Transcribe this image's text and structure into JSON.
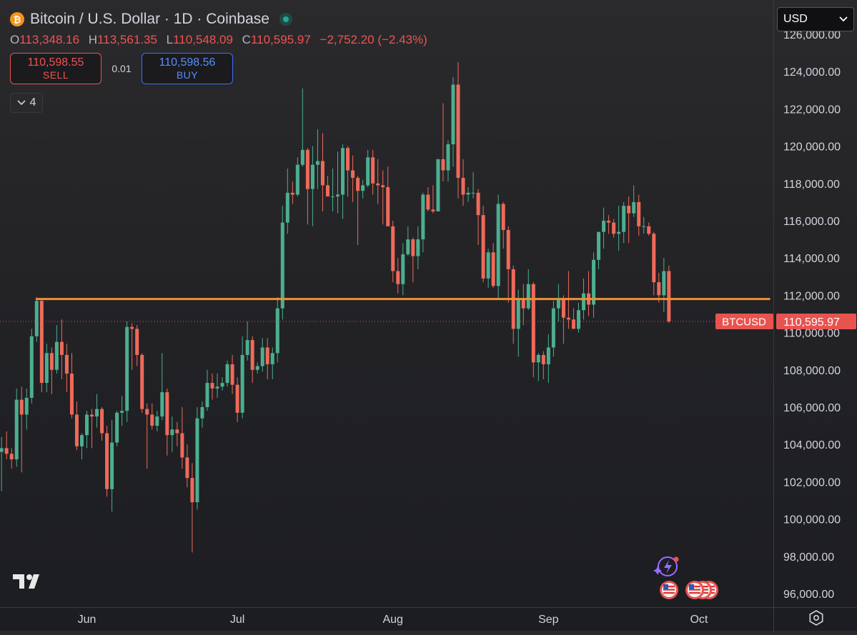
{
  "header": {
    "symbol_icon": "bitcoin-icon",
    "title": "Bitcoin / U.S. Dollar · 1D · Coinbase",
    "market_status_icon": "live-market-dot-icon",
    "ohlc": {
      "o_label": "O",
      "o": "113,348.16",
      "h_label": "H",
      "h": "113,561.35",
      "l_label": "L",
      "l": "110,548.09",
      "c_label": "C",
      "c": "110,595.97",
      "change": "−2,752.20 (−2.43%)"
    }
  },
  "trade": {
    "sell_price": "110,598.55",
    "sell_label": "SELL",
    "spread": "0.01",
    "buy_price": "110,598.56",
    "buy_label": "BUY"
  },
  "indicators": {
    "count": "4",
    "icon": "chevron-down-icon"
  },
  "currency": {
    "selected": "USD"
  },
  "price_tag": {
    "symbol": "BTCUSD",
    "price": "110,595.97"
  },
  "colors": {
    "up": "#4caf8f",
    "down": "#ef6a5a",
    "level_line": "#f0902f",
    "price_tag": "#e8534f",
    "sell": "#ef5350",
    "buy": "#3d6ef5"
  },
  "chart_data": {
    "type": "candlestick",
    "y_axis": {
      "range": [
        95700,
        126000
      ],
      "ticks": [
        96000,
        98000,
        100000,
        102000,
        104000,
        106000,
        108000,
        110000,
        112000,
        114000,
        116000,
        118000,
        120000,
        122000,
        124000,
        126000
      ],
      "tick_labels": [
        "96,000.00",
        "98,000.00",
        "100,000.00",
        "102,000.00",
        "104,000.00",
        "106,000.00",
        "108,000.00",
        "110,000.00",
        "112,000.00",
        "114,000.00",
        "116,000.00",
        "118,000.00",
        "120,000.00",
        "122,000.00",
        "124,000.00",
        "126,000.00"
      ]
    },
    "x_axis": {
      "tick_labels": [
        "Jun",
        "Jul",
        "Aug",
        "Sep",
        "Oct"
      ],
      "tick_dates": [
        "2025-06-01",
        "2025-07-01",
        "2025-08-01",
        "2025-09-01",
        "2025-10-01"
      ]
    },
    "level_line": {
      "price": 111800,
      "from": "2025-05-22",
      "to": "2025-10-15"
    },
    "last_price": 110595.97,
    "candles": [
      {
        "d": "2025-05-15",
        "o": 103600,
        "h": 104400,
        "l": 101500,
        "c": 103800
      },
      {
        "d": "2025-05-16",
        "o": 103800,
        "h": 104700,
        "l": 103200,
        "c": 103500
      },
      {
        "d": "2025-05-17",
        "o": 103500,
        "h": 103800,
        "l": 102700,
        "c": 103200
      },
      {
        "d": "2025-05-18",
        "o": 103200,
        "h": 107000,
        "l": 102800,
        "c": 106400
      },
      {
        "d": "2025-05-19",
        "o": 106400,
        "h": 107100,
        "l": 102500,
        "c": 105600
      },
      {
        "d": "2025-05-20",
        "o": 105600,
        "h": 107000,
        "l": 104800,
        "c": 106500
      },
      {
        "d": "2025-05-21",
        "o": 106500,
        "h": 110200,
        "l": 106200,
        "c": 109800
      },
      {
        "d": "2025-05-22",
        "o": 109800,
        "h": 111900,
        "l": 109500,
        "c": 111700
      },
      {
        "d": "2025-05-23",
        "o": 111700,
        "h": 111800,
        "l": 106800,
        "c": 107300
      },
      {
        "d": "2025-05-24",
        "o": 107300,
        "h": 109400,
        "l": 106800,
        "c": 108900
      },
      {
        "d": "2025-05-25",
        "o": 108900,
        "h": 109200,
        "l": 106700,
        "c": 108000
      },
      {
        "d": "2025-05-26",
        "o": 108000,
        "h": 110400,
        "l": 107800,
        "c": 109500
      },
      {
        "d": "2025-05-27",
        "o": 109500,
        "h": 110700,
        "l": 107500,
        "c": 108800
      },
      {
        "d": "2025-05-28",
        "o": 108800,
        "h": 109400,
        "l": 106800,
        "c": 107800
      },
      {
        "d": "2025-05-29",
        "o": 107800,
        "h": 108900,
        "l": 105400,
        "c": 105600
      },
      {
        "d": "2025-05-30",
        "o": 105600,
        "h": 106300,
        "l": 103700,
        "c": 103900
      },
      {
        "d": "2025-05-31",
        "o": 103900,
        "h": 104600,
        "l": 103200,
        "c": 104500
      },
      {
        "d": "2025-06-01",
        "o": 104500,
        "h": 105800,
        "l": 103800,
        "c": 105600
      },
      {
        "d": "2025-06-02",
        "o": 105600,
        "h": 105900,
        "l": 103800,
        "c": 105500
      },
      {
        "d": "2025-06-03",
        "o": 105500,
        "h": 106700,
        "l": 104900,
        "c": 105900
      },
      {
        "d": "2025-06-04",
        "o": 105900,
        "h": 106000,
        "l": 104200,
        "c": 104600
      },
      {
        "d": "2025-06-05",
        "o": 104600,
        "h": 105000,
        "l": 101200,
        "c": 101600
      },
      {
        "d": "2025-06-06",
        "o": 101600,
        "h": 105300,
        "l": 100400,
        "c": 104100
      },
      {
        "d": "2025-06-07",
        "o": 104100,
        "h": 105800,
        "l": 103900,
        "c": 105700
      },
      {
        "d": "2025-06-08",
        "o": 105700,
        "h": 106600,
        "l": 105000,
        "c": 105800
      },
      {
        "d": "2025-06-09",
        "o": 105800,
        "h": 110600,
        "l": 105200,
        "c": 110300
      },
      {
        "d": "2025-06-10",
        "o": 110300,
        "h": 110500,
        "l": 108000,
        "c": 110200
      },
      {
        "d": "2025-06-11",
        "o": 110200,
        "h": 110400,
        "l": 108200,
        "c": 108800
      },
      {
        "d": "2025-06-12",
        "o": 108800,
        "h": 108900,
        "l": 105700,
        "c": 105900
      },
      {
        "d": "2025-06-13",
        "o": 105900,
        "h": 106200,
        "l": 102700,
        "c": 105600
      },
      {
        "d": "2025-06-14",
        "o": 105600,
        "h": 106200,
        "l": 104800,
        "c": 105000
      },
      {
        "d": "2025-06-15",
        "o": 105000,
        "h": 105800,
        "l": 104700,
        "c": 105500
      },
      {
        "d": "2025-06-16",
        "o": 105500,
        "h": 108900,
        "l": 105300,
        "c": 106800
      },
      {
        "d": "2025-06-17",
        "o": 106800,
        "h": 107000,
        "l": 103400,
        "c": 104500
      },
      {
        "d": "2025-06-18",
        "o": 104500,
        "h": 105500,
        "l": 103600,
        "c": 104800
      },
      {
        "d": "2025-06-19",
        "o": 104800,
        "h": 105200,
        "l": 103900,
        "c": 104600
      },
      {
        "d": "2025-06-20",
        "o": 104600,
        "h": 106000,
        "l": 102700,
        "c": 103300
      },
      {
        "d": "2025-06-21",
        "o": 103300,
        "h": 104000,
        "l": 101700,
        "c": 102200
      },
      {
        "d": "2025-06-22",
        "o": 102200,
        "h": 103000,
        "l": 98200,
        "c": 100900
      },
      {
        "d": "2025-06-23",
        "o": 100900,
        "h": 106000,
        "l": 100500,
        "c": 105400
      },
      {
        "d": "2025-06-24",
        "o": 105400,
        "h": 106300,
        "l": 104900,
        "c": 106000
      },
      {
        "d": "2025-06-25",
        "o": 106000,
        "h": 108000,
        "l": 105800,
        "c": 107300
      },
      {
        "d": "2025-06-26",
        "o": 107300,
        "h": 107800,
        "l": 106400,
        "c": 107000
      },
      {
        "d": "2025-06-27",
        "o": 107000,
        "h": 107800,
        "l": 106500,
        "c": 107100
      },
      {
        "d": "2025-06-28",
        "o": 107100,
        "h": 107600,
        "l": 106900,
        "c": 107300
      },
      {
        "d": "2025-06-29",
        "o": 107300,
        "h": 108500,
        "l": 107100,
        "c": 108300
      },
      {
        "d": "2025-06-30",
        "o": 108300,
        "h": 108800,
        "l": 106700,
        "c": 107200
      },
      {
        "d": "2025-07-01",
        "o": 107200,
        "h": 107600,
        "l": 105200,
        "c": 105700
      },
      {
        "d": "2025-07-02",
        "o": 105700,
        "h": 109800,
        "l": 105400,
        "c": 108800
      },
      {
        "d": "2025-07-03",
        "o": 108800,
        "h": 110600,
        "l": 108500,
        "c": 109600
      },
      {
        "d": "2025-07-04",
        "o": 109600,
        "h": 109800,
        "l": 107300,
        "c": 108000
      },
      {
        "d": "2025-07-05",
        "o": 108000,
        "h": 108400,
        "l": 107800,
        "c": 108200
      },
      {
        "d": "2025-07-06",
        "o": 108200,
        "h": 109700,
        "l": 107900,
        "c": 109200
      },
      {
        "d": "2025-07-07",
        "o": 109200,
        "h": 109700,
        "l": 107500,
        "c": 108300
      },
      {
        "d": "2025-07-08",
        "o": 108300,
        "h": 109200,
        "l": 107500,
        "c": 108900
      },
      {
        "d": "2025-07-09",
        "o": 108900,
        "h": 111900,
        "l": 108400,
        "c": 111300
      },
      {
        "d": "2025-07-10",
        "o": 111300,
        "h": 116800,
        "l": 110700,
        "c": 115900
      },
      {
        "d": "2025-07-11",
        "o": 115900,
        "h": 118800,
        "l": 115300,
        "c": 117500
      },
      {
        "d": "2025-07-12",
        "o": 117500,
        "h": 118100,
        "l": 116900,
        "c": 117400
      },
      {
        "d": "2025-07-13",
        "o": 117400,
        "h": 119400,
        "l": 117300,
        "c": 119000
      },
      {
        "d": "2025-07-14",
        "o": 119000,
        "h": 123100,
        "l": 118900,
        "c": 119800
      },
      {
        "d": "2025-07-15",
        "o": 119800,
        "h": 119900,
        "l": 115800,
        "c": 117700
      },
      {
        "d": "2025-07-16",
        "o": 117700,
        "h": 120000,
        "l": 115700,
        "c": 119000
      },
      {
        "d": "2025-07-17",
        "o": 119000,
        "h": 120900,
        "l": 117700,
        "c": 119200
      },
      {
        "d": "2025-07-18",
        "o": 119200,
        "h": 120700,
        "l": 116500,
        "c": 117900
      },
      {
        "d": "2025-07-19",
        "o": 117900,
        "h": 118400,
        "l": 117400,
        "c": 117300
      },
      {
        "d": "2025-07-20",
        "o": 117300,
        "h": 118800,
        "l": 116500,
        "c": 117300
      },
      {
        "d": "2025-07-21",
        "o": 117300,
        "h": 119700,
        "l": 116400,
        "c": 117400
      },
      {
        "d": "2025-07-22",
        "o": 117400,
        "h": 120100,
        "l": 116100,
        "c": 119900
      },
      {
        "d": "2025-07-23",
        "o": 119900,
        "h": 120000,
        "l": 117300,
        "c": 118700
      },
      {
        "d": "2025-07-24",
        "o": 118700,
        "h": 119500,
        "l": 117000,
        "c": 118300
      },
      {
        "d": "2025-07-25",
        "o": 118300,
        "h": 118400,
        "l": 114700,
        "c": 117600
      },
      {
        "d": "2025-07-26",
        "o": 117600,
        "h": 118200,
        "l": 117200,
        "c": 117900
      },
      {
        "d": "2025-07-27",
        "o": 117900,
        "h": 119800,
        "l": 117800,
        "c": 119400
      },
      {
        "d": "2025-07-28",
        "o": 119400,
        "h": 119800,
        "l": 117400,
        "c": 118000
      },
      {
        "d": "2025-07-29",
        "o": 118000,
        "h": 119300,
        "l": 116900,
        "c": 117900
      },
      {
        "d": "2025-07-30",
        "o": 117900,
        "h": 118700,
        "l": 115800,
        "c": 117800
      },
      {
        "d": "2025-07-31",
        "o": 117800,
        "h": 118900,
        "l": 115700,
        "c": 115700
      },
      {
        "d": "2025-08-01",
        "o": 115700,
        "h": 116000,
        "l": 112700,
        "c": 113300
      },
      {
        "d": "2025-08-02",
        "o": 113300,
        "h": 114000,
        "l": 112100,
        "c": 112600
      },
      {
        "d": "2025-08-03",
        "o": 112600,
        "h": 114800,
        "l": 112000,
        "c": 114200
      },
      {
        "d": "2025-08-04",
        "o": 114200,
        "h": 115700,
        "l": 114100,
        "c": 115000
      },
      {
        "d": "2025-08-05",
        "o": 115000,
        "h": 115100,
        "l": 112700,
        "c": 114100
      },
      {
        "d": "2025-08-06",
        "o": 114100,
        "h": 115700,
        "l": 113400,
        "c": 115000
      },
      {
        "d": "2025-08-07",
        "o": 115000,
        "h": 117500,
        "l": 114300,
        "c": 117400
      },
      {
        "d": "2025-08-08",
        "o": 117400,
        "h": 117800,
        "l": 116500,
        "c": 116600
      },
      {
        "d": "2025-08-09",
        "o": 116600,
        "h": 117900,
        "l": 116400,
        "c": 116500
      },
      {
        "d": "2025-08-10",
        "o": 116500,
        "h": 119300,
        "l": 116500,
        "c": 119300
      },
      {
        "d": "2025-08-11",
        "o": 119300,
        "h": 122300,
        "l": 118100,
        "c": 118700
      },
      {
        "d": "2025-08-12",
        "o": 118700,
        "h": 120300,
        "l": 118100,
        "c": 120100
      },
      {
        "d": "2025-08-13",
        "o": 120100,
        "h": 123700,
        "l": 118900,
        "c": 123300
      },
      {
        "d": "2025-08-14",
        "o": 123300,
        "h": 124500,
        "l": 117200,
        "c": 118300
      },
      {
        "d": "2025-08-15",
        "o": 118300,
        "h": 119300,
        "l": 116800,
        "c": 117400
      },
      {
        "d": "2025-08-16",
        "o": 117400,
        "h": 117800,
        "l": 117000,
        "c": 117500
      },
      {
        "d": "2025-08-17",
        "o": 117500,
        "h": 118600,
        "l": 117200,
        "c": 117500
      },
      {
        "d": "2025-08-18",
        "o": 117500,
        "h": 117700,
        "l": 114700,
        "c": 116300
      },
      {
        "d": "2025-08-19",
        "o": 116300,
        "h": 116800,
        "l": 112700,
        "c": 112900
      },
      {
        "d": "2025-08-20",
        "o": 112900,
        "h": 114500,
        "l": 112400,
        "c": 114300
      },
      {
        "d": "2025-08-21",
        "o": 114300,
        "h": 114800,
        "l": 112400,
        "c": 112500
      },
      {
        "d": "2025-08-22",
        "o": 112500,
        "h": 117400,
        "l": 111800,
        "c": 116900
      },
      {
        "d": "2025-08-23",
        "o": 116900,
        "h": 117000,
        "l": 114500,
        "c": 115500
      },
      {
        "d": "2025-08-24",
        "o": 115500,
        "h": 115700,
        "l": 111600,
        "c": 113400
      },
      {
        "d": "2025-08-25",
        "o": 113400,
        "h": 113600,
        "l": 109400,
        "c": 110200
      },
      {
        "d": "2025-08-26",
        "o": 110200,
        "h": 112300,
        "l": 108700,
        "c": 111800
      },
      {
        "d": "2025-08-27",
        "o": 111800,
        "h": 112600,
        "l": 110400,
        "c": 111300
      },
      {
        "d": "2025-08-28",
        "o": 111300,
        "h": 113400,
        "l": 111200,
        "c": 112600
      },
      {
        "d": "2025-08-29",
        "o": 112600,
        "h": 112700,
        "l": 107600,
        "c": 108400
      },
      {
        "d": "2025-08-30",
        "o": 108400,
        "h": 108900,
        "l": 107400,
        "c": 108800
      },
      {
        "d": "2025-08-31",
        "o": 108800,
        "h": 109000,
        "l": 107500,
        "c": 108300
      },
      {
        "d": "2025-09-01",
        "o": 108300,
        "h": 109900,
        "l": 107300,
        "c": 109200
      },
      {
        "d": "2025-09-02",
        "o": 109200,
        "h": 111700,
        "l": 108700,
        "c": 111300
      },
      {
        "d": "2025-09-03",
        "o": 111300,
        "h": 112600,
        "l": 110600,
        "c": 111800
      },
      {
        "d": "2025-09-04",
        "o": 111800,
        "h": 112000,
        "l": 109400,
        "c": 110800
      },
      {
        "d": "2025-09-05",
        "o": 110800,
        "h": 113300,
        "l": 110200,
        "c": 110700
      },
      {
        "d": "2025-09-06",
        "o": 110700,
        "h": 111300,
        "l": 110300,
        "c": 110200
      },
      {
        "d": "2025-09-07",
        "o": 110200,
        "h": 111600,
        "l": 110000,
        "c": 111200
      },
      {
        "d": "2025-09-08",
        "o": 111200,
        "h": 112900,
        "l": 110700,
        "c": 112100
      },
      {
        "d": "2025-09-09",
        "o": 112100,
        "h": 113300,
        "l": 110900,
        "c": 111500
      },
      {
        "d": "2025-09-10",
        "o": 111500,
        "h": 114300,
        "l": 110800,
        "c": 113900
      },
      {
        "d": "2025-09-11",
        "o": 113900,
        "h": 115400,
        "l": 113400,
        "c": 115400
      },
      {
        "d": "2025-09-12",
        "o": 115400,
        "h": 116700,
        "l": 114500,
        "c": 116000
      },
      {
        "d": "2025-09-13",
        "o": 116000,
        "h": 116300,
        "l": 115300,
        "c": 115900
      },
      {
        "d": "2025-09-14",
        "o": 115900,
        "h": 116100,
        "l": 115100,
        "c": 115300
      },
      {
        "d": "2025-09-15",
        "o": 115300,
        "h": 116800,
        "l": 114400,
        "c": 115400
      },
      {
        "d": "2025-09-16",
        "o": 115400,
        "h": 117000,
        "l": 114800,
        "c": 116800
      },
      {
        "d": "2025-09-17",
        "o": 116800,
        "h": 117300,
        "l": 114800,
        "c": 116400
      },
      {
        "d": "2025-09-18",
        "o": 116400,
        "h": 117900,
        "l": 116200,
        "c": 117000
      },
      {
        "d": "2025-09-19",
        "o": 117000,
        "h": 117400,
        "l": 115200,
        "c": 115700
      },
      {
        "d": "2025-09-20",
        "o": 115700,
        "h": 116200,
        "l": 115300,
        "c": 115700
      },
      {
        "d": "2025-09-21",
        "o": 115700,
        "h": 115900,
        "l": 115200,
        "c": 115300
      },
      {
        "d": "2025-09-22",
        "o": 115300,
        "h": 115400,
        "l": 112000,
        "c": 112700
      },
      {
        "d": "2025-09-23",
        "o": 112700,
        "h": 113200,
        "l": 111600,
        "c": 112000
      },
      {
        "d": "2025-09-24",
        "o": 112000,
        "h": 114000,
        "l": 111100,
        "c": 113300
      },
      {
        "d": "2025-09-25",
        "o": 113300,
        "h": 113600,
        "l": 110500,
        "c": 110600
      }
    ]
  }
}
